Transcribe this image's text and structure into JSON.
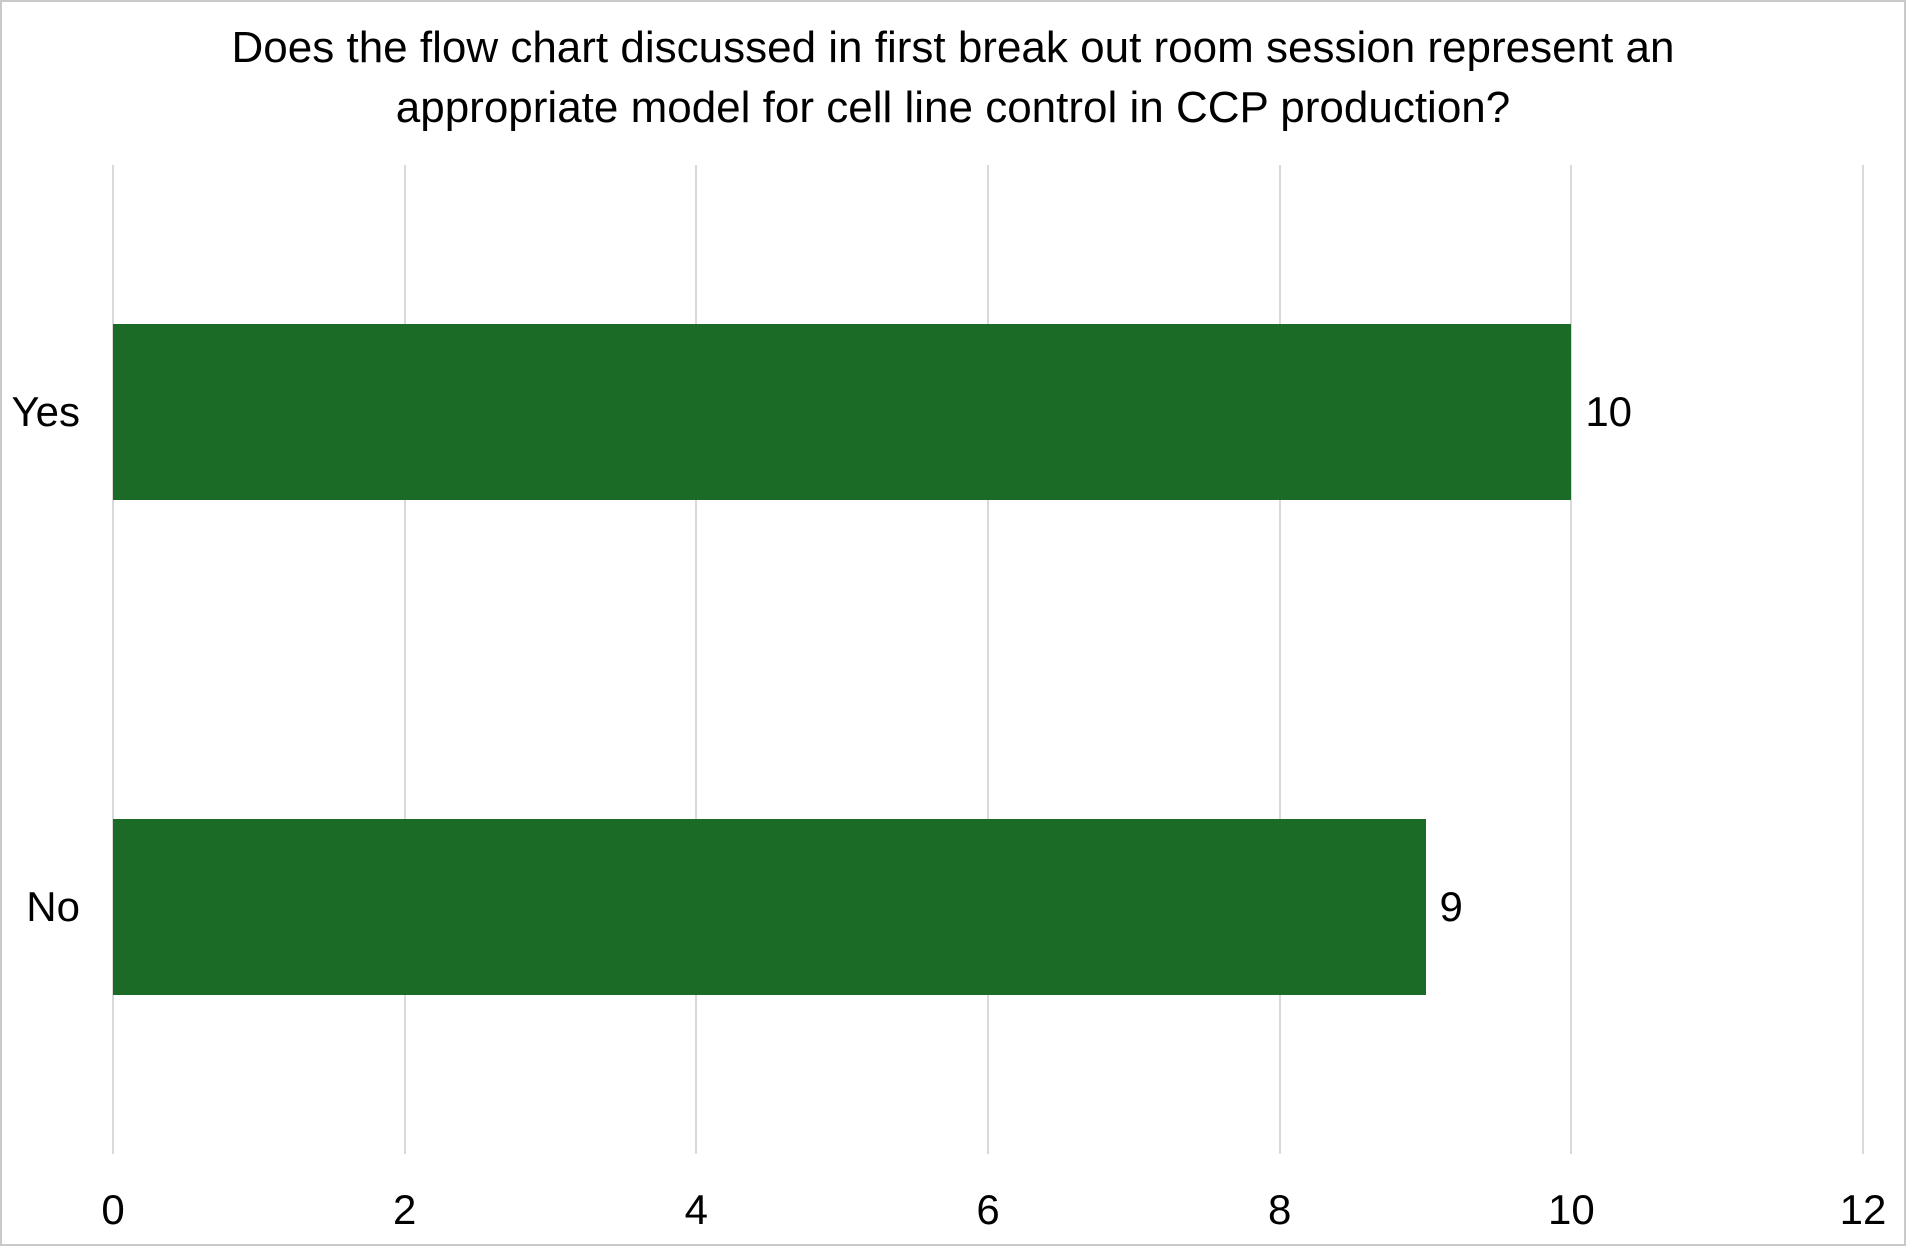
{
  "chart_data": {
    "type": "bar",
    "orientation": "horizontal",
    "title": "Does the flow chart discussed in first break out room session represent an appropriate model for cell line control in CCP production?",
    "title_lines": [
      "Does the flow chart discussed in first break out room session represent an",
      "appropriate model for cell line control in CCP production?"
    ],
    "categories": [
      "Yes",
      "No"
    ],
    "values": [
      10,
      9
    ],
    "data_labels": [
      "10",
      "9"
    ],
    "x_ticks": [
      "0",
      "2",
      "4",
      "6",
      "8",
      "10",
      "12"
    ],
    "xlim": [
      0,
      12
    ],
    "ylabel": "",
    "xlabel": "",
    "grid": "vertical-only",
    "legend": "none",
    "colors": {
      "bar": "#1b6b26",
      "gridline": "#d9d9d9",
      "text": "#000000",
      "frame_border": "#c9c9c9",
      "background": "#ffffff"
    }
  }
}
